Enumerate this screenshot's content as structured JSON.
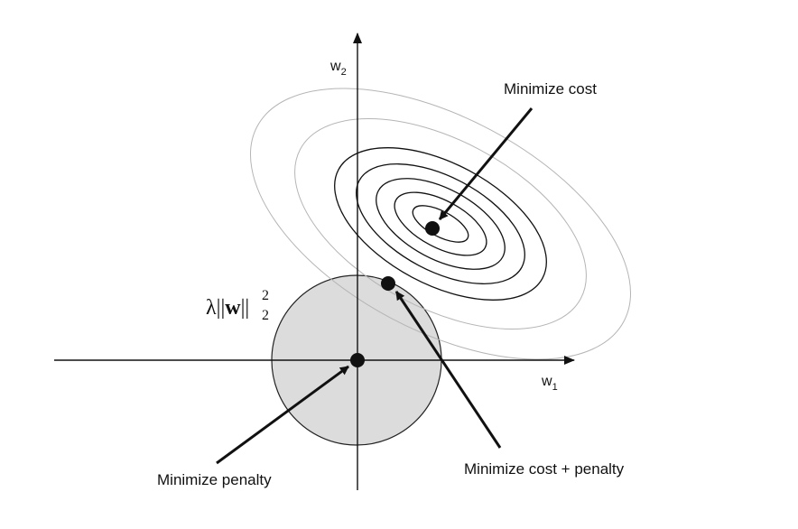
{
  "axes": {
    "x_label": "w",
    "x_subscript": "1",
    "y_label": "w",
    "y_subscript": "2"
  },
  "penalty": {
    "lambda_symbol": "λ",
    "bar_open": "||",
    "vector": "w",
    "bar_close": "||",
    "superscript": "2",
    "subscript": "2"
  },
  "annotations": {
    "minimize_cost": "Minimize cost",
    "minimize_penalty": "Minimize penalty",
    "minimize_cost_penalty": "Minimize cost + penalty"
  },
  "colors": {
    "penalty_fill": "#dcdcdc",
    "outer_contour": "#b5b5b5",
    "inner_contour": "#111111"
  }
}
